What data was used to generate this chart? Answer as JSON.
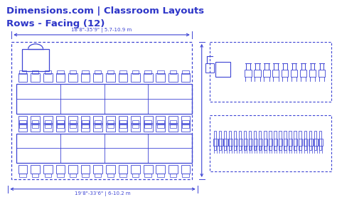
{
  "title_line1": "Dimensions.com | Classroom Layouts",
  "title_line2": "Rows - Facing (12)",
  "title_color": "#2d35c8",
  "bg_color": "#ffffff",
  "blue": "#3d44d4",
  "top_dim_text": "18‘8\"-35’9\" | 5.7-10.9 m",
  "bot_dim_text": "19‘8\"-33’6\" | 6-10.2 m",
  "figsize": [
    4.74,
    2.84
  ],
  "dpi": 100
}
